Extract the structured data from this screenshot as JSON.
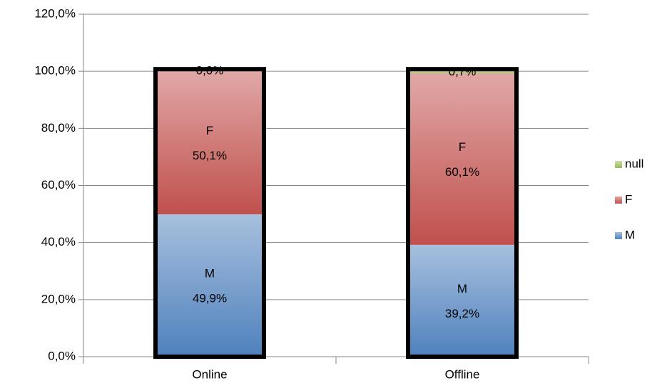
{
  "chart_data": {
    "type": "stacked_bar",
    "categories": [
      "Online",
      "Offline"
    ],
    "series": [
      {
        "name": "M",
        "color": "#4f81bd",
        "values": [
          49.9,
          39.2
        ],
        "value_labels": [
          "49,9%",
          "39,2%"
        ]
      },
      {
        "name": "F",
        "color": "#c0504d",
        "values": [
          50.1,
          60.1
        ],
        "value_labels": [
          "50,1%",
          "60,1%"
        ]
      },
      {
        "name": "null",
        "color": "#9bbb59",
        "values": [
          0.0,
          0.7
        ],
        "value_labels": [
          "0,0%",
          "0,7%"
        ]
      }
    ],
    "ylim": [
      0,
      120
    ],
    "yticks": [
      {
        "value": 0,
        "label": "0,0%"
      },
      {
        "value": 20,
        "label": "20,0%"
      },
      {
        "value": 40,
        "label": "40,0%"
      },
      {
        "value": 60,
        "label": "60,0%"
      },
      {
        "value": 80,
        "label": "80,0%"
      },
      {
        "value": 100,
        "label": "100,0%"
      },
      {
        "value": 120,
        "label": "120,0%"
      }
    ],
    "grid": true,
    "legend": "right"
  }
}
